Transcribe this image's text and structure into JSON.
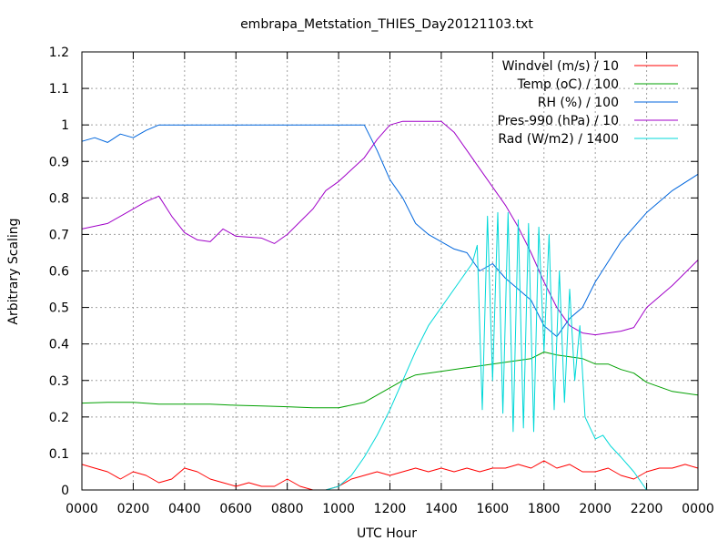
{
  "chart_data": {
    "type": "line",
    "title": "embrapa_Metstation_THIES_Day20121103.txt",
    "xlabel": "UTC Hour",
    "ylabel": "Arbitrary Scaling",
    "xlim": [
      0,
      24
    ],
    "ylim": [
      0,
      1.2
    ],
    "x_ticks": [
      0,
      2,
      4,
      6,
      8,
      10,
      12,
      14,
      16,
      18,
      20,
      22,
      24
    ],
    "x_tick_labels": [
      "0000",
      "0200",
      "0400",
      "0600",
      "0800",
      "1000",
      "1200",
      "1400",
      "1600",
      "1800",
      "2000",
      "2200",
      "0000"
    ],
    "y_ticks": [
      0,
      0.1,
      0.2,
      0.3,
      0.4,
      0.5,
      0.6,
      0.7,
      0.8,
      0.9,
      1,
      1.1,
      1.2
    ],
    "y_tick_labels": [
      "0",
      "0.1",
      "0.2",
      "0.3",
      "0.4",
      "0.5",
      "0.6",
      "0.7",
      "0.8",
      "0.9",
      "1",
      "1.1",
      "1.2"
    ],
    "grid": true,
    "legend_position": "top-right",
    "series": [
      {
        "name": "Windvel (m/s) / 10",
        "color": "#ff0000",
        "x": [
          0,
          0.5,
          1,
          1.5,
          2,
          2.5,
          3,
          3.5,
          4,
          4.5,
          5,
          5.5,
          6,
          6.5,
          7,
          7.5,
          8,
          8.5,
          9,
          9.5,
          10,
          10.5,
          11,
          11.5,
          12,
          12.5,
          13,
          13.5,
          14,
          14.5,
          15,
          15.5,
          16,
          16.5,
          17,
          17.5,
          18,
          18.5,
          19,
          19.5,
          20,
          20.5,
          21,
          21.5,
          22,
          22.5,
          23,
          23.5,
          24
        ],
        "values": [
          0.07,
          0.06,
          0.05,
          0.03,
          0.05,
          0.04,
          0.02,
          0.03,
          0.06,
          0.05,
          0.03,
          0.02,
          0.01,
          0.02,
          0.01,
          0.01,
          0.03,
          0.01,
          0,
          0,
          0.01,
          0.03,
          0.04,
          0.05,
          0.04,
          0.05,
          0.06,
          0.05,
          0.06,
          0.05,
          0.06,
          0.05,
          0.06,
          0.06,
          0.07,
          0.06,
          0.08,
          0.06,
          0.07,
          0.05,
          0.05,
          0.06,
          0.04,
          0.03,
          0.05,
          0.06,
          0.06,
          0.07,
          0.06
        ]
      },
      {
        "name": "Temp (oC) / 100",
        "color": "#00a000",
        "x": [
          0,
          1,
          2,
          3,
          4,
          5,
          6,
          7,
          8,
          9,
          10,
          11,
          11.5,
          12,
          12.5,
          13,
          14,
          15,
          16,
          17,
          17.5,
          18,
          18.5,
          19,
          19.5,
          20,
          20.5,
          21,
          21.5,
          22,
          23,
          24
        ],
        "values": [
          0.238,
          0.24,
          0.24,
          0.235,
          0.235,
          0.235,
          0.232,
          0.23,
          0.228,
          0.225,
          0.225,
          0.24,
          0.26,
          0.28,
          0.3,
          0.315,
          0.325,
          0.335,
          0.345,
          0.355,
          0.36,
          0.378,
          0.37,
          0.365,
          0.36,
          0.345,
          0.345,
          0.33,
          0.32,
          0.295,
          0.27,
          0.26
        ]
      },
      {
        "name": "RH (%) / 100",
        "color": "#0066dd",
        "x": [
          0,
          0.5,
          1,
          1.5,
          2,
          2.5,
          3,
          4,
          5,
          6,
          7,
          8,
          9,
          10,
          11,
          11.5,
          12,
          12.5,
          13,
          13.5,
          14,
          14.5,
          15,
          15.5,
          16,
          16.5,
          17,
          17.5,
          18,
          18.5,
          19,
          19.5,
          20,
          21,
          22,
          23,
          24
        ],
        "values": [
          0.955,
          0.965,
          0.952,
          0.975,
          0.965,
          0.985,
          1,
          1,
          1,
          1,
          1,
          1,
          1,
          1,
          1,
          0.93,
          0.85,
          0.8,
          0.73,
          0.7,
          0.68,
          0.66,
          0.65,
          0.6,
          0.62,
          0.58,
          0.55,
          0.52,
          0.45,
          0.42,
          0.47,
          0.5,
          0.57,
          0.68,
          0.76,
          0.82,
          0.865
        ]
      },
      {
        "name": "Pres-990 (hPa) / 10",
        "color": "#a000c8",
        "x": [
          0,
          1,
          2,
          2.5,
          3,
          3.5,
          4,
          4.5,
          5,
          5.5,
          6,
          7,
          7.5,
          8,
          9,
          9.5,
          10,
          11,
          11.5,
          12,
          12.5,
          13,
          13.5,
          14,
          14.5,
          15,
          15.5,
          16,
          16.5,
          17,
          17.5,
          18,
          18.5,
          19,
          19.5,
          20,
          20.5,
          21,
          21.5,
          22,
          23,
          24
        ],
        "values": [
          0.715,
          0.73,
          0.77,
          0.79,
          0.805,
          0.75,
          0.705,
          0.685,
          0.68,
          0.715,
          0.695,
          0.69,
          0.675,
          0.7,
          0.77,
          0.82,
          0.845,
          0.91,
          0.96,
          1,
          1.01,
          1.01,
          1.01,
          1.01,
          0.98,
          0.93,
          0.88,
          0.83,
          0.78,
          0.72,
          0.65,
          0.57,
          0.5,
          0.45,
          0.43,
          0.425,
          0.43,
          0.435,
          0.445,
          0.5,
          0.56,
          0.63
        ]
      },
      {
        "name": "Rad (W/m2) / 1400",
        "color": "#00d8d8",
        "x": [
          9.5,
          10,
          10.5,
          11,
          11.5,
          12,
          12.5,
          13,
          13.5,
          14,
          14.5,
          15,
          15.2,
          15.4,
          15.6,
          15.8,
          16,
          16.2,
          16.4,
          16.6,
          16.8,
          17,
          17.2,
          17.4,
          17.6,
          17.8,
          18,
          18.2,
          18.4,
          18.6,
          18.8,
          19,
          19.2,
          19.4,
          19.6,
          19.8,
          20,
          20.3,
          20.6,
          21,
          21.5,
          22
        ],
        "values": [
          0,
          0.01,
          0.04,
          0.09,
          0.15,
          0.22,
          0.3,
          0.38,
          0.45,
          0.5,
          0.55,
          0.6,
          0.62,
          0.67,
          0.22,
          0.75,
          0.3,
          0.76,
          0.21,
          0.76,
          0.16,
          0.74,
          0.17,
          0.73,
          0.16,
          0.72,
          0.38,
          0.7,
          0.22,
          0.6,
          0.24,
          0.55,
          0.3,
          0.45,
          0.2,
          0.17,
          0.14,
          0.15,
          0.12,
          0.09,
          0.05,
          0
        ]
      }
    ]
  }
}
